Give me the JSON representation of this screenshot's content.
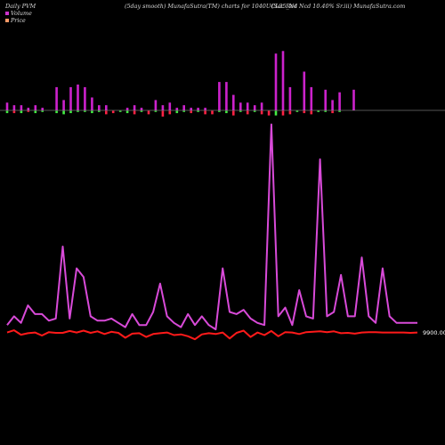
{
  "header": {
    "left": "Daily PVM",
    "center": "(5day smooth) MunafaSutra(TM) charts for 1040UCL25_N4",
    "right": "(Sec Red Ncd 10.40% Sr.iii) MunafaSutra.com"
  },
  "legend": {
    "items": [
      {
        "label": "Volume",
        "color": "#cc33cc"
      },
      {
        "label": "Price",
        "color": "#ff9966"
      }
    ]
  },
  "colors": {
    "volume_line": "#d84ad8",
    "price_line": "#ff1a1a",
    "bar_up": "#cc22cc",
    "bar_down": "#ff2244",
    "bar_neutral": "#44ee44",
    "axis_line": "#aaaaaa"
  },
  "chart_data": {
    "type": "line",
    "price_axis_label": "9900.00",
    "volume_bars": {
      "up": [
        3,
        2,
        2,
        1,
        2,
        1,
        0,
        9,
        4,
        9,
        10,
        9,
        5,
        2,
        2,
        0,
        0,
        1,
        2,
        1,
        0,
        4,
        2,
        3,
        1,
        2,
        1,
        1,
        1,
        0,
        11,
        11,
        6,
        3,
        3,
        2,
        3,
        0,
        22,
        23,
        9,
        0,
        15,
        9,
        0,
        8,
        4,
        7,
        0,
        8,
        0,
        0,
        0,
        0,
        0,
        0,
        0,
        0,
        0
      ],
      "down": [
        0,
        0,
        0,
        0,
        0,
        0,
        0,
        0,
        0,
        0,
        0,
        0,
        0,
        0,
        0,
        0,
        0,
        0,
        0,
        0,
        0,
        0,
        0,
        0,
        0,
        0,
        0,
        0,
        0,
        0,
        0,
        0,
        0,
        0,
        0,
        0,
        0,
        0,
        0,
        0,
        0,
        0,
        0,
        0,
        0,
        0,
        0,
        0,
        0,
        0,
        0,
        0,
        0,
        0,
        0,
        0,
        0,
        0,
        0
      ]
    },
    "volume_series": [
      4,
      8,
      5,
      13,
      9,
      9,
      6,
      7,
      40,
      7,
      30,
      26,
      8,
      6,
      6,
      7,
      5,
      3,
      9,
      4,
      4,
      10,
      23,
      8,
      5,
      3,
      9,
      4,
      8,
      4,
      2,
      30,
      10,
      9,
      11,
      7,
      5,
      4,
      96,
      8,
      12,
      4,
      20,
      8,
      7,
      80,
      8,
      10,
      27,
      8,
      8,
      35,
      8,
      5,
      30,
      8,
      5,
      5,
      5,
      5
    ],
    "price_series": [
      2.0,
      2.6,
      1.4,
      1.8,
      2.0,
      1.2,
      2.1,
      1.9,
      1.9,
      2.4,
      2.0,
      2.5,
      1.9,
      2.3,
      1.6,
      2.2,
      1.9,
      0.6,
      1.7,
      1.8,
      0.8,
      1.6,
      1.8,
      2.0,
      1.3,
      1.5,
      1.0,
      0.2,
      1.5,
      1.8,
      1.6,
      2.0,
      0.4,
      1.9,
      2.5,
      0.8,
      2.0,
      1.3,
      2.4,
      1.0,
      2.1,
      2.0,
      1.6,
      2.1,
      2.2,
      2.3,
      2.1,
      2.3,
      1.8,
      1.9,
      1.7,
      2.0,
      2.1,
      2.1,
      2.0,
      2.0,
      2.0,
      2.0,
      1.9,
      2.0
    ]
  }
}
